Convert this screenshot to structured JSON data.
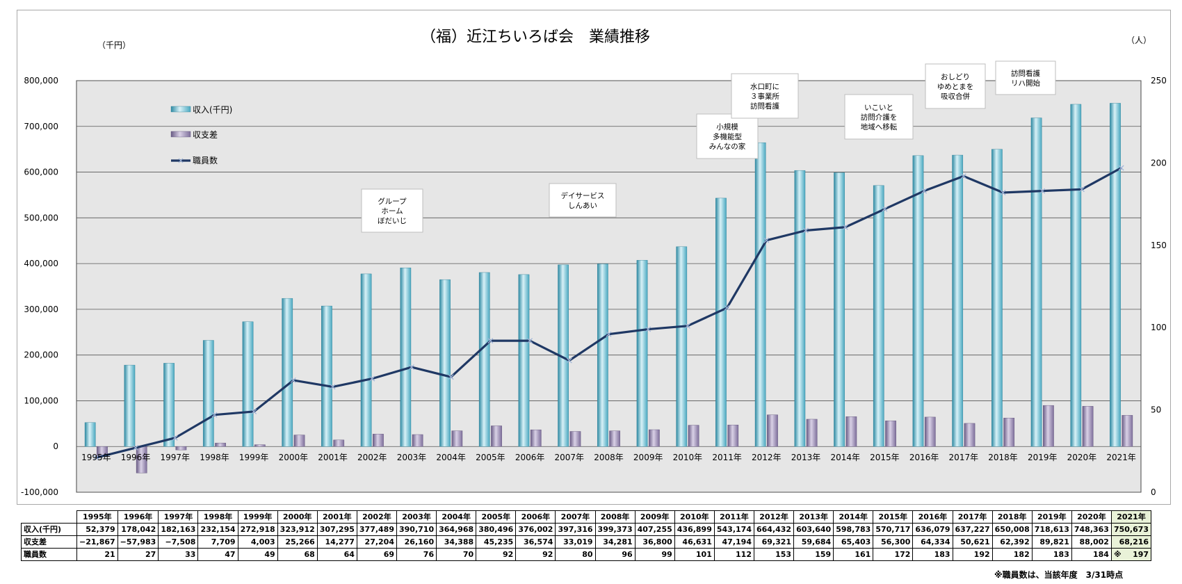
{
  "chart_data": {
    "type": "bar",
    "title": "（福）近江ちいろば会　業績推移",
    "left_unit": "（千円）",
    "right_unit": "（人）",
    "categories": [
      "1995年",
      "1996年",
      "1997年",
      "1998年",
      "1999年",
      "2000年",
      "2001年",
      "2002年",
      "2003年",
      "2004年",
      "2005年",
      "2006年",
      "2007年",
      "2008年",
      "2009年",
      "2010年",
      "2011年",
      "2012年",
      "2013年",
      "2014年",
      "2015年",
      "2016年",
      "2017年",
      "2018年",
      "2019年",
      "2020年",
      "2021年"
    ],
    "y_left": {
      "min": -100000,
      "max": 800000,
      "ticks": [
        "800,000",
        "700,000",
        "600,000",
        "500,000",
        "400,000",
        "300,000",
        "200,000",
        "100,000",
        "0",
        "-100,000"
      ]
    },
    "y_right": {
      "min": 0,
      "max": 250,
      "ticks": [
        "250",
        "200",
        "150",
        "100",
        "50",
        "0"
      ]
    },
    "grid": true,
    "legend_position": "top-left",
    "series": [
      {
        "name": "収入(千円)",
        "kind": "bar",
        "axis": "left",
        "color": "#5fb6cc",
        "values": [
          52379,
          178042,
          182163,
          232154,
          272918,
          323912,
          307295,
          377489,
          390710,
          364968,
          380496,
          376002,
          397316,
          399373,
          407255,
          436899,
          543174,
          664432,
          603640,
          598783,
          570717,
          636079,
          637227,
          650008,
          718613,
          748363,
          750673
        ]
      },
      {
        "name": "収支差",
        "kind": "bar",
        "axis": "left",
        "color": "#8e7fa6",
        "values": [
          -21867,
          -57983,
          -7508,
          7709,
          4003,
          25266,
          14277,
          27204,
          26160,
          34388,
          45235,
          36574,
          33019,
          34281,
          36800,
          46631,
          47194,
          69321,
          59684,
          65403,
          56300,
          64334,
          50621,
          62392,
          89821,
          88002,
          68216
        ]
      },
      {
        "name": "職員数",
        "kind": "line",
        "axis": "right",
        "color": "#1f3864",
        "values": [
          21,
          27,
          33,
          47,
          49,
          68,
          64,
          69,
          76,
          70,
          92,
          92,
          80,
          96,
          99,
          101,
          112,
          153,
          159,
          161,
          172,
          183,
          192,
          182,
          183,
          184,
          197
        ]
      }
    ],
    "annotations": [
      {
        "lines": [
          "グループ",
          "ホーム",
          "ぼだいじ"
        ],
        "near": "2002年"
      },
      {
        "lines": [
          "デイサービス",
          "しんあい"
        ],
        "near": "2007年"
      },
      {
        "lines": [
          "小規模",
          "多機能型",
          "みんなの家"
        ],
        "near": "2011年"
      },
      {
        "lines": [
          "水口町に",
          "３事業所",
          "訪問看護"
        ],
        "near": "2012年"
      },
      {
        "lines": [
          "いこいと",
          "訪問介護を",
          "地域へ移転"
        ],
        "near": "2015年"
      },
      {
        "lines": [
          "おしどり",
          "ゆめとまを",
          "吸収合併"
        ],
        "near": "2016年"
      },
      {
        "lines": [
          "訪問看護",
          "リハ開始"
        ],
        "near": "2018年"
      }
    ]
  },
  "table": {
    "headers": [
      "1995年",
      "1996年",
      "1997年",
      "1998年",
      "1999年",
      "2000年",
      "2001年",
      "2002年",
      "2003年",
      "2004年",
      "2005年",
      "2006年",
      "2007年",
      "2008年",
      "2009年",
      "2010年",
      "2011年",
      "2012年",
      "2013年",
      "2014年",
      "2015年",
      "2016年",
      "2017年",
      "2018年",
      "2019年",
      "2020年",
      "2021年"
    ],
    "rows": [
      {
        "label": "収入(千円)",
        "cells": [
          "52,379",
          "178,042",
          "182,163",
          "232,154",
          "272,918",
          "323,912",
          "307,295",
          "377,489",
          "390,710",
          "364,968",
          "380,496",
          "376,002",
          "397,316",
          "399,373",
          "407,255",
          "436,899",
          "543,174",
          "664,432",
          "603,640",
          "598,783",
          "570,717",
          "636,079",
          "637,227",
          "650,008",
          "718,613",
          "748,363",
          "750,673"
        ]
      },
      {
        "label": "収支差",
        "cells": [
          "−21,867",
          "−57,983",
          "−7,508",
          "7,709",
          "4,003",
          "25,266",
          "14,277",
          "27,204",
          "26,160",
          "34,388",
          "45,235",
          "36,574",
          "33,019",
          "34,281",
          "36,800",
          "46,631",
          "47,194",
          "69,321",
          "59,684",
          "65,403",
          "56,300",
          "64,334",
          "50,621",
          "62,392",
          "89,821",
          "88,002",
          "68,216"
        ]
      },
      {
        "label": "職員数",
        "cells": [
          "21",
          "27",
          "33",
          "47",
          "49",
          "68",
          "64",
          "69",
          "76",
          "70",
          "92",
          "92",
          "80",
          "96",
          "99",
          "101",
          "112",
          "153",
          "159",
          "161",
          "172",
          "183",
          "192",
          "182",
          "183",
          "184",
          "197"
        ]
      }
    ],
    "last_staff_mark": "※"
  },
  "footnote": "※職員数は、当該年度　3/31時点"
}
